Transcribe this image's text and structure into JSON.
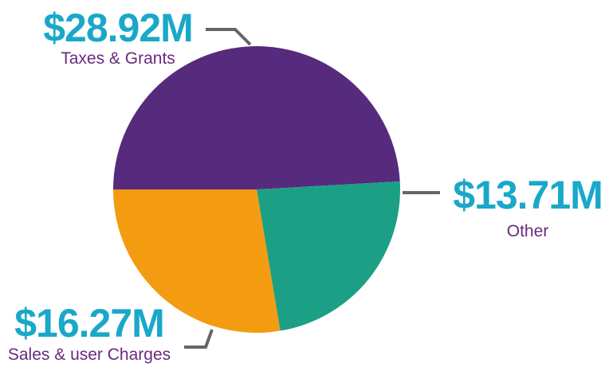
{
  "chart_data": {
    "type": "pie",
    "title": "",
    "slices": [
      {
        "label": "Taxes & Grants",
        "display": "$28.92M",
        "value": 28.92,
        "color": "#562a7d"
      },
      {
        "label": "Other",
        "display": "$13.71M",
        "value": 13.71,
        "color": "#1ba086"
      },
      {
        "label": "Sales & user Charges",
        "display": "$16.27M",
        "value": 16.27,
        "color": "#f39c12"
      }
    ],
    "value_label_color": "#1aa8c9",
    "category_label_color": "#6a2a7e",
    "leader_line_color": "#666666"
  }
}
